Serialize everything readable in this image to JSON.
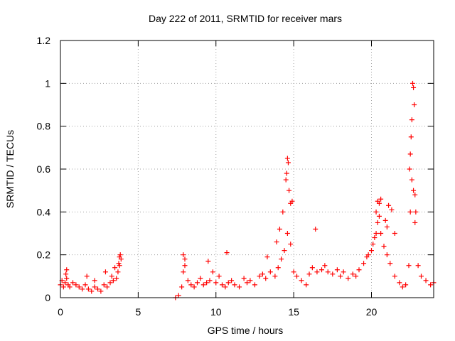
{
  "chart_data": {
    "type": "scatter",
    "title": "Day 222 of 2011, SRMTID for receiver mars",
    "xlabel": "GPS time / hours",
    "ylabel": "SRMTID / TECUs",
    "xlim": [
      0,
      24
    ],
    "ylim": [
      0,
      1.2
    ],
    "xticks": [
      0,
      5,
      10,
      15,
      20
    ],
    "xtick_labels": [
      "0",
      "5",
      "10",
      "15",
      "20"
    ],
    "yticks": [
      0,
      0.2,
      0.4,
      0.6,
      0.8,
      1,
      1.2
    ],
    "ytick_labels": [
      "0",
      "0.2",
      "0.4",
      "0.6",
      "0.8",
      "1",
      "1.2"
    ],
    "grid": true,
    "marker": "+",
    "marker_color": "#ff0000",
    "series": [
      {
        "name": "SRMTID",
        "x": [
          0.0,
          0.1,
          0.2,
          0.3,
          0.4,
          0.5,
          0.6,
          0.8,
          1.0,
          1.2,
          1.4,
          1.6,
          1.8,
          2.0,
          2.2,
          2.4,
          2.6,
          2.8,
          3.0,
          3.2,
          3.4,
          3.6,
          3.7,
          3.8,
          3.9,
          0.4,
          0.35,
          1.7,
          2.2,
          2.9,
          3.3,
          3.5,
          3.75,
          3.8,
          3.85,
          7.4,
          7.6,
          7.8,
          7.9,
          8.0,
          8.2,
          8.4,
          8.6,
          8.8,
          9.0,
          9.2,
          9.4,
          9.6,
          9.8,
          10.0,
          10.2,
          10.4,
          10.6,
          10.8,
          11.0,
          11.2,
          11.5,
          11.8,
          12.0,
          12.2,
          12.5,
          12.8,
          13.0,
          13.2,
          13.5,
          13.8,
          14.0,
          14.2,
          14.4,
          14.6,
          14.8,
          15.0,
          15.2,
          15.5,
          15.8,
          16.0,
          16.2,
          16.5,
          16.8,
          17.0,
          17.2,
          17.5,
          17.8,
          18.0,
          18.2,
          18.5,
          18.8,
          19.0,
          19.2,
          19.5,
          19.8,
          20.0,
          20.1,
          20.2,
          20.3,
          20.4,
          20.5,
          20.6,
          20.8,
          21.0,
          21.2,
          21.5,
          21.8,
          22.0,
          22.2,
          22.4,
          22.5,
          22.6,
          22.7,
          22.8,
          23.0,
          23.2,
          23.5,
          23.8,
          24.0,
          7.9,
          8.0,
          9.5,
          10.7,
          13.3,
          13.9,
          14.1,
          14.3,
          14.5,
          14.55,
          14.6,
          14.65,
          14.7,
          14.8,
          14.9,
          16.4,
          19.7,
          20.3,
          20.4,
          20.5,
          20.6,
          20.9,
          21.0,
          21.1,
          21.3,
          21.5,
          22.45,
          22.5,
          22.55,
          22.6,
          22.65,
          22.7,
          22.75,
          22.8,
          22.85
        ],
        "y": [
          0.06,
          0.08,
          0.05,
          0.07,
          0.09,
          0.06,
          0.05,
          0.07,
          0.06,
          0.05,
          0.04,
          0.06,
          0.04,
          0.03,
          0.05,
          0.04,
          0.03,
          0.06,
          0.05,
          0.07,
          0.08,
          0.09,
          0.12,
          0.15,
          0.18,
          0.13,
          0.11,
          0.1,
          0.08,
          0.12,
          0.1,
          0.14,
          0.16,
          0.19,
          0.2,
          0.0,
          0.01,
          0.05,
          0.12,
          0.15,
          0.08,
          0.06,
          0.05,
          0.07,
          0.09,
          0.06,
          0.07,
          0.08,
          0.12,
          0.07,
          0.1,
          0.06,
          0.05,
          0.07,
          0.08,
          0.06,
          0.05,
          0.09,
          0.07,
          0.08,
          0.06,
          0.1,
          0.11,
          0.09,
          0.12,
          0.1,
          0.14,
          0.18,
          0.22,
          0.3,
          0.25,
          0.12,
          0.1,
          0.08,
          0.06,
          0.11,
          0.14,
          0.12,
          0.13,
          0.15,
          0.12,
          0.11,
          0.13,
          0.1,
          0.12,
          0.09,
          0.11,
          0.1,
          0.13,
          0.16,
          0.2,
          0.22,
          0.25,
          0.28,
          0.3,
          0.35,
          0.38,
          0.3,
          0.24,
          0.2,
          0.16,
          0.1,
          0.07,
          0.05,
          0.06,
          0.15,
          0.4,
          0.55,
          0.5,
          0.35,
          0.15,
          0.1,
          0.08,
          0.06,
          0.07,
          0.2,
          0.18,
          0.17,
          0.21,
          0.19,
          0.26,
          0.32,
          0.4,
          0.55,
          0.58,
          0.65,
          0.63,
          0.5,
          0.44,
          0.45,
          0.32,
          0.19,
          0.4,
          0.45,
          0.44,
          0.46,
          0.36,
          0.33,
          0.43,
          0.41,
          0.3,
          0.6,
          0.67,
          0.75,
          0.83,
          1.0,
          0.98,
          0.9,
          0.48,
          0.4
        ]
      }
    ]
  }
}
